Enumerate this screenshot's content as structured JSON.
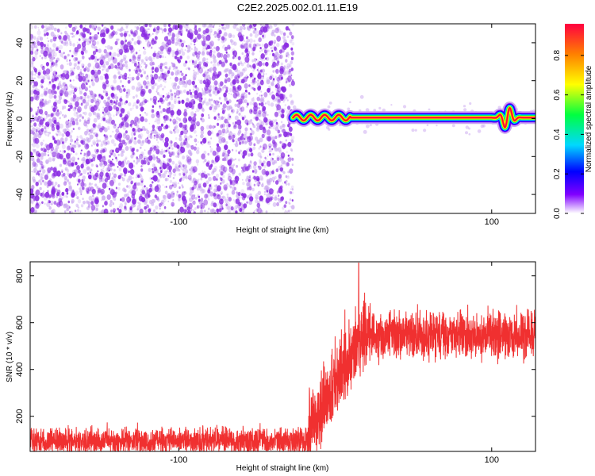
{
  "title": "C2E2.2025.002.01.11.E19",
  "colors": {
    "snr_line": "#f03030",
    "spec_point": "#8a2be2",
    "spec_point_faint": "#c9a6f0"
  },
  "chart_data": [
    {
      "id": "spectrogram",
      "type": "heatmap",
      "xlabel": "Height of straight line (km)",
      "ylabel": "Frequency (Hz)",
      "xlim": [
        -195,
        128
      ],
      "ylim": [
        -50,
        50
      ],
      "x_ticks": [
        -100,
        100
      ],
      "y_ticks": [
        -40,
        -20,
        0,
        20,
        40
      ],
      "noise_region_x": [
        -195,
        -27
      ],
      "signal_trace": {
        "x_start": -27,
        "x_end": 128,
        "frequency": 0.5,
        "disturbance_x": 110,
        "disturbance_amplitude": 6
      },
      "colorbar": {
        "label": "Normalized spectral amplitude",
        "range": [
          0,
          0.96
        ],
        "ticks": [
          "0.0",
          "0.2",
          "0.4",
          "0.6",
          "0.8"
        ]
      }
    },
    {
      "id": "snr",
      "type": "line",
      "xlabel": "Height of straight line (km)",
      "ylabel": "SNR (10 * v/v)",
      "xlim": [
        -195,
        128
      ],
      "ylim": [
        50,
        860
      ],
      "x_ticks": [
        -100,
        100
      ],
      "y_ticks": [
        200,
        400,
        600,
        800
      ],
      "segments": [
        {
          "x_range": [
            -195,
            -17
          ],
          "mean": 95,
          "spread": 60
        },
        {
          "x_range": [
            -17,
            20
          ],
          "mean_start": 150,
          "mean_end": 560,
          "spread": 170
        },
        {
          "x_range": [
            20,
            128
          ],
          "mean": 550,
          "spread": 110
        }
      ],
      "peak": {
        "x": 15,
        "y": 855
      }
    }
  ]
}
